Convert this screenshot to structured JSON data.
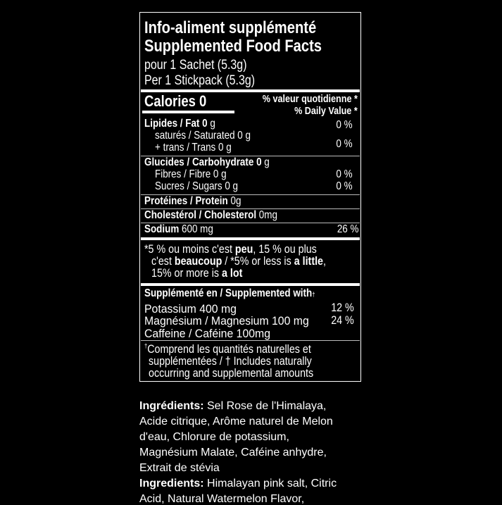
{
  "label": {
    "title_fr": "Info-aliment supplémenté",
    "title_en": "Supplemented Food Facts",
    "serving_fr": "pour 1 Sachet (5.3g)",
    "serving_en": "Per 1 Stickpack (5.3g)",
    "calories_label": "Calories 0",
    "dv_fr": "% valeur quotidienne *",
    "dv_en": "% Daily Value *",
    "fat": {
      "label": "Lipides / Fat 0",
      "unit": " g",
      "dv": "0 %"
    },
    "saturated": "saturés / Saturated 0 g",
    "trans": "+ trans / Trans 0 g",
    "sat_trans_dv": "0 %",
    "carb": {
      "label": "Glucides / Carbohydrate 0",
      "unit": " g"
    },
    "fibre": {
      "label": "Fibres / Fibre 0 g",
      "dv": "0 %"
    },
    "sugars": {
      "label": "Sucres / Sugars 0 g",
      "dv": "0 %"
    },
    "protein": {
      "label": "Protéines / Protein",
      "value": " 0g"
    },
    "cholesterol": {
      "label": "Cholestérol / Cholesterol",
      "value": " 0mg"
    },
    "sodium": {
      "label": "Sodium",
      "value": " 600 mg",
      "dv": "26 %"
    },
    "footnote": {
      "l1a": "*5 % ou moins c'est ",
      "l1b": "peu",
      "l1c": ", 15 % ou plus",
      "l2a": "c'est ",
      "l2b": "beaucoup",
      "l2c": " / *5% or less is ",
      "l2d": "a little",
      "l2e": ",",
      "l3a": "15% or more is ",
      "l3b": "a lot"
    },
    "supplemented_header": "Supplémenté en / Supplemented with",
    "dagger": "†",
    "potassium": {
      "label": "Potassium  400 mg",
      "dv": "12 %"
    },
    "magnesium": {
      "label": "Magnésium / Magnesium 100 mg",
      "dv": "24 %"
    },
    "caffeine": {
      "label": "Caffeine / Caféine 100mg"
    },
    "dagger_note": [
      "Comprend les quantités naturelles et",
      "supplémentées / † Includes naturally",
      "occurring and supplemental amounts"
    ]
  },
  "ingredients": {
    "fr_label": "Ingrédients:",
    "fr_lines": [
      " Sel Rose de l'Himalaya,",
      "Acide citrique, Arôme naturel de Melon",
      "d'eau, Chlorure de potassium,",
      "Magnésium Malate, Caféine anhydre,",
      "Extrait de stévia"
    ],
    "en_label": "Ingredients:",
    "en_lines": [
      " Himalayan pink salt, Citric",
      "Acid, Natural Watermelon Flavor,"
    ]
  }
}
